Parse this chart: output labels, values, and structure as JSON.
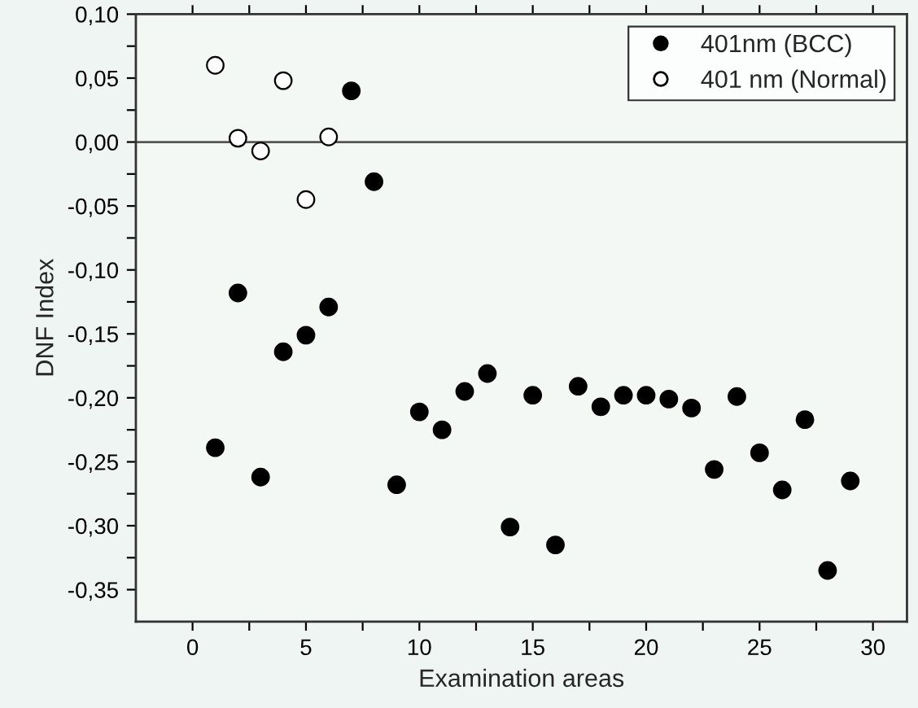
{
  "chart_data": {
    "type": "scatter",
    "xlabel": "Examination areas",
    "ylabel": "DNF Index",
    "xlim": [
      -2.5,
      31.5
    ],
    "ylim": [
      -0.375,
      0.1
    ],
    "xticks": [
      0,
      {
        "value": 2.5,
        "label": null
      },
      5,
      {
        "value": 7.5,
        "label": null
      },
      10,
      {
        "value": 12.5,
        "label": null
      },
      15,
      {
        "value": 17.5,
        "label": null
      },
      20,
      {
        "value": 22.5,
        "label": null
      },
      25,
      {
        "value": 27.5,
        "label": null
      },
      30
    ],
    "yticks": [
      {
        "value": -0.35,
        "label": "-0,35"
      },
      {
        "value": -0.325,
        "label": null
      },
      {
        "value": -0.3,
        "label": "-0,30"
      },
      {
        "value": -0.275,
        "label": null
      },
      {
        "value": -0.25,
        "label": "-0,25"
      },
      {
        "value": -0.225,
        "label": null
      },
      {
        "value": -0.2,
        "label": "-0,20"
      },
      {
        "value": -0.175,
        "label": null
      },
      {
        "value": -0.15,
        "label": "-0,15"
      },
      {
        "value": -0.125,
        "label": null
      },
      {
        "value": -0.1,
        "label": "-0,10"
      },
      {
        "value": -0.075,
        "label": null
      },
      {
        "value": -0.05,
        "label": "-0,05"
      },
      {
        "value": -0.025,
        "label": null
      },
      {
        "value": 0,
        "label": "0,00"
      },
      {
        "value": 0.025,
        "label": null
      },
      {
        "value": 0.05,
        "label": "0,05"
      },
      {
        "value": 0.075,
        "label": null
      },
      {
        "value": 0.1,
        "label": "0,10"
      }
    ],
    "marker": "circle",
    "legend": "top right",
    "grid": false,
    "ref_lines": [
      {
        "axis": "y",
        "value": 0,
        "color": "#555555",
        "line_style": "solid"
      }
    ],
    "series": [
      {
        "name": "401nm (BCC)",
        "color": "#000000",
        "x": [
          1,
          2,
          3,
          4,
          5,
          6,
          7,
          8,
          9,
          10,
          11,
          12,
          13,
          14,
          15,
          16,
          17,
          18,
          19,
          20,
          21,
          22,
          23,
          24,
          25,
          26,
          27,
          28,
          29
        ],
        "values": [
          -0.239,
          -0.118,
          -0.262,
          -0.164,
          -0.151,
          -0.129,
          0.04,
          -0.031,
          -0.268,
          -0.211,
          -0.225,
          -0.195,
          -0.181,
          -0.301,
          -0.198,
          -0.315,
          -0.191,
          -0.207,
          -0.198,
          -0.198,
          -0.201,
          -0.208,
          -0.256,
          -0.199,
          -0.243,
          -0.272,
          -0.217,
          -0.335,
          -0.265
        ]
      },
      {
        "name": "401 nm (Normal)",
        "color": "#ffffff",
        "x": [
          1,
          2,
          3,
          4,
          5,
          6
        ],
        "values": [
          0.06,
          0.003,
          -0.007,
          0.048,
          -0.045,
          0.004
        ]
      }
    ]
  }
}
